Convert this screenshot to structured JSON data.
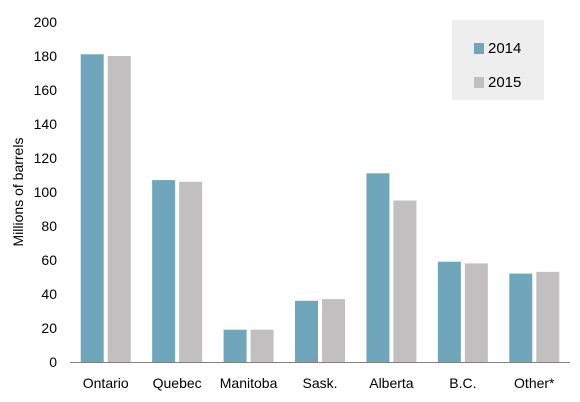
{
  "chart_data": {
    "type": "bar",
    "title": "",
    "xlabel": "",
    "ylabel": "Millions of barrels",
    "ylim": [
      0,
      200
    ],
    "yticks": [
      0,
      20,
      40,
      60,
      80,
      100,
      120,
      140,
      160,
      180,
      200
    ],
    "grid": false,
    "legend_position": "top-right",
    "categories": [
      "Ontario",
      "Quebec",
      "Manitoba",
      "Sask.",
      "Alberta",
      "B.C.",
      "Other*"
    ],
    "series": [
      {
        "name": "2014",
        "color": "#6fa6bb",
        "values": [
          181,
          107,
          19,
          36,
          111,
          59,
          52
        ]
      },
      {
        "name": "2015",
        "color": "#c1bfc0",
        "values": [
          180,
          106,
          19,
          37,
          95,
          58,
          53
        ]
      }
    ]
  }
}
